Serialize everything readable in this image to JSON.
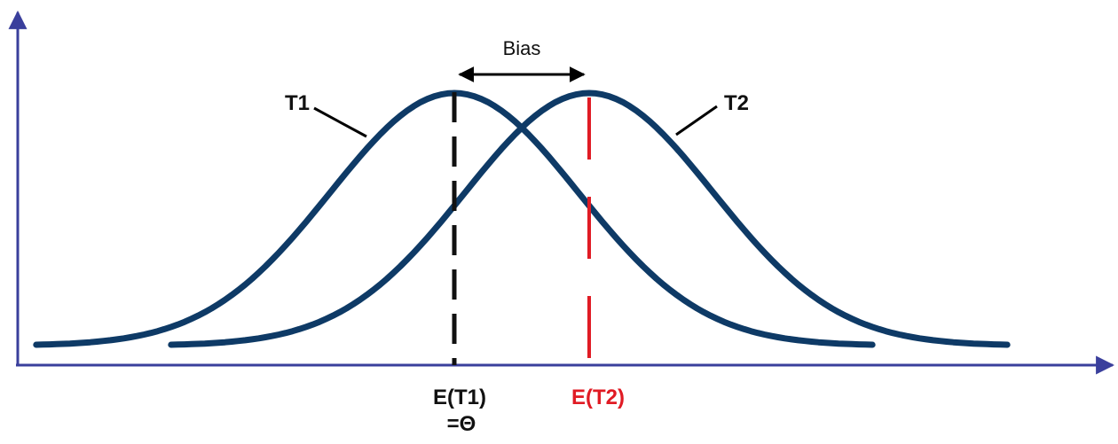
{
  "colors": {
    "axis": "#3a3f9c",
    "curve": "#0e3a66",
    "mean1_line": "#111111",
    "mean2_line": "#e01b24",
    "label_red": "#e01b24"
  },
  "labels": {
    "bias": "Bias",
    "t1": "T1",
    "t2": "T2",
    "e_t1": "E(T1)",
    "theta": "=Θ",
    "e_t2": "E(T2)"
  },
  "curves": {
    "t1": {
      "name": "T1",
      "mean": 0,
      "sd": 1
    },
    "t2": {
      "name": "T2",
      "mean": 1,
      "sd": 1
    }
  }
}
